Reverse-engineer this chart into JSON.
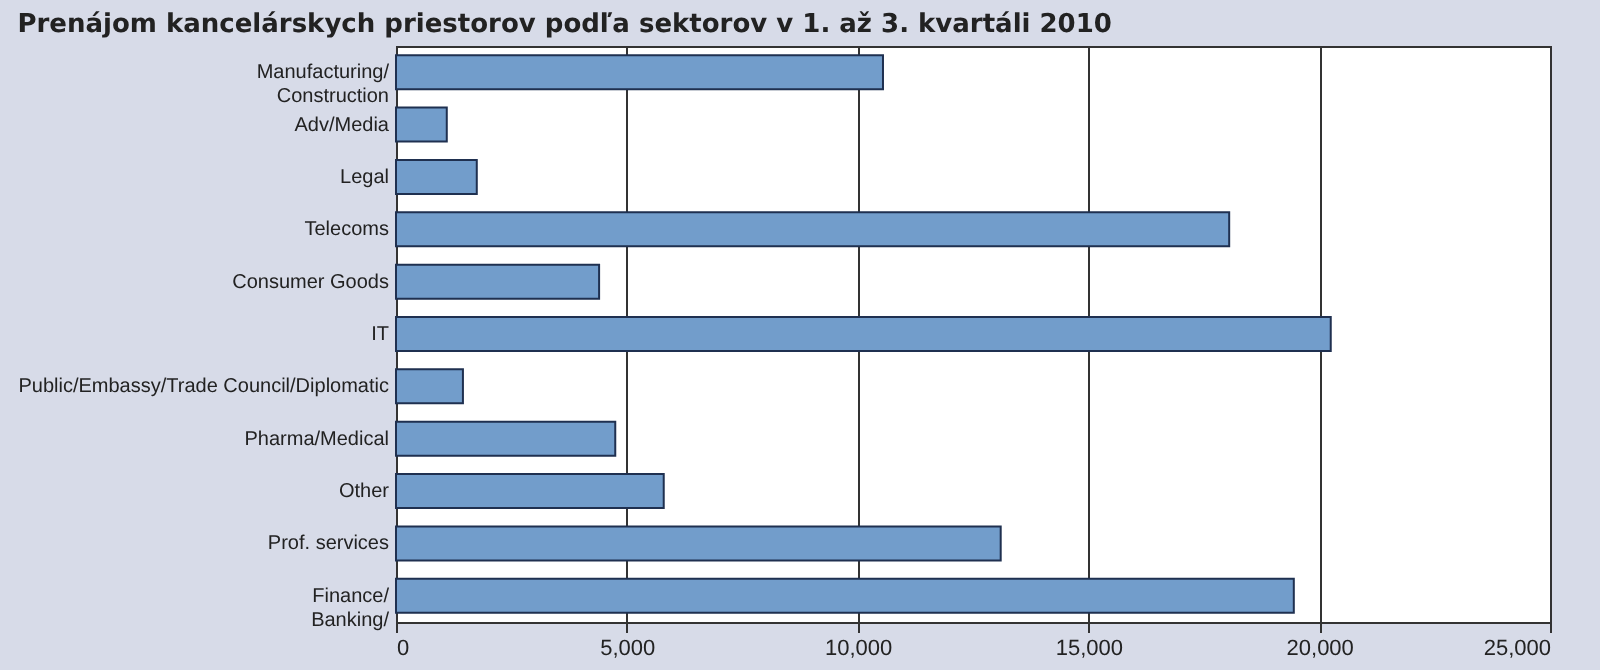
{
  "chart_data": {
    "type": "bar",
    "orientation": "horizontal",
    "title": "Prenájom kancelárskych priestorov podľa sektorov v 1. až 3. kvartáli 2010",
    "categories": [
      "Manufacturing/\nConstruction",
      "Adv/Media",
      "Legal",
      "Telecoms",
      "Consumer Goods",
      "IT",
      "Public/Embassy/Trade Council/Diplomatic",
      "Pharma/Medical",
      "Other",
      "Prof. services",
      "Finance/\nBanking/"
    ],
    "values": [
      10550,
      1100,
      1750,
      18050,
      4400,
      20250,
      1450,
      4750,
      5800,
      13100,
      19450
    ],
    "color": "#729dcb",
    "xlim": [
      0,
      25000
    ],
    "xticks": [
      {
        "value": 0,
        "label": "0"
      },
      {
        "value": 5000,
        "label": "5,000"
      },
      {
        "value": 10000,
        "label": "10,000"
      },
      {
        "value": 15000,
        "label": "15,000"
      },
      {
        "value": 20000,
        "label": "20,000"
      },
      {
        "value": 25000,
        "label": "25,000"
      }
    ],
    "grid": "x"
  }
}
